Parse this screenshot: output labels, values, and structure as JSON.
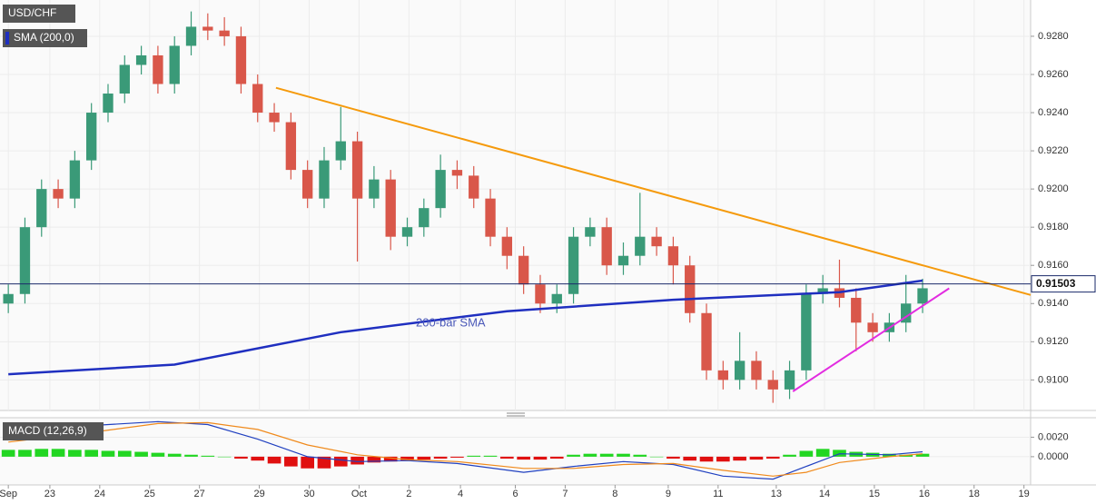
{
  "chart_data": [
    {
      "type": "candlestick",
      "title": "USD/CHF",
      "x": [
        0,
        1,
        2,
        3,
        4,
        5,
        6,
        7,
        8,
        9,
        10,
        11,
        12,
        13,
        14,
        15,
        16,
        17,
        18,
        19,
        20,
        21,
        22,
        23,
        24,
        25,
        26,
        27,
        28,
        29,
        30,
        31,
        32,
        33,
        34,
        35,
        36,
        37,
        38,
        39,
        40,
        41,
        42,
        43,
        44,
        45,
        46,
        47,
        48,
        49,
        50,
        51,
        52,
        53,
        54,
        55
      ],
      "open": [
        0.914,
        0.9145,
        0.918,
        0.92,
        0.9195,
        0.9215,
        0.924,
        0.925,
        0.9265,
        0.927,
        0.9255,
        0.9275,
        0.9285,
        0.9283,
        0.928,
        0.9255,
        0.924,
        0.9235,
        0.921,
        0.9195,
        0.9215,
        0.9225,
        0.9195,
        0.9205,
        0.9175,
        0.918,
        0.919,
        0.921,
        0.9207,
        0.9195,
        0.9175,
        0.9165,
        0.915,
        0.914,
        0.9145,
        0.9175,
        0.918,
        0.916,
        0.9165,
        0.9175,
        0.917,
        0.916,
        0.9135,
        0.9105,
        0.91,
        0.911,
        0.91,
        0.9095,
        0.9105,
        0.9145,
        0.9148,
        0.9143,
        0.913,
        0.9125,
        0.913,
        0.914
      ],
      "high": [
        0.915,
        0.9185,
        0.9205,
        0.9205,
        0.922,
        0.9245,
        0.9255,
        0.927,
        0.9275,
        0.9275,
        0.928,
        0.9293,
        0.9292,
        0.929,
        0.9285,
        0.926,
        0.9245,
        0.924,
        0.9215,
        0.9222,
        0.9243,
        0.923,
        0.9212,
        0.921,
        0.9185,
        0.9195,
        0.9218,
        0.9215,
        0.9212,
        0.92,
        0.918,
        0.917,
        0.9155,
        0.915,
        0.918,
        0.9185,
        0.9185,
        0.9172,
        0.9198,
        0.918,
        0.9175,
        0.9165,
        0.914,
        0.911,
        0.9125,
        0.9115,
        0.9105,
        0.911,
        0.915,
        0.9155,
        0.9163,
        0.9148,
        0.9135,
        0.9135,
        0.9155,
        0.9153
      ],
      "low": [
        0.9135,
        0.914,
        0.9175,
        0.919,
        0.919,
        0.921,
        0.9235,
        0.9245,
        0.926,
        0.925,
        0.925,
        0.927,
        0.9278,
        0.9275,
        0.925,
        0.9235,
        0.923,
        0.9205,
        0.919,
        0.919,
        0.921,
        0.9162,
        0.919,
        0.9168,
        0.917,
        0.9175,
        0.9185,
        0.92,
        0.919,
        0.917,
        0.9158,
        0.9145,
        0.9135,
        0.9135,
        0.914,
        0.917,
        0.9155,
        0.9155,
        0.916,
        0.9165,
        0.915,
        0.913,
        0.91,
        0.9095,
        0.9095,
        0.9095,
        0.9088,
        0.909,
        0.91,
        0.914,
        0.9138,
        0.9115,
        0.912,
        0.912,
        0.9125,
        0.9135
      ],
      "close": [
        0.9145,
        0.918,
        0.92,
        0.9195,
        0.9215,
        0.924,
        0.925,
        0.9265,
        0.927,
        0.9255,
        0.9275,
        0.9285,
        0.9283,
        0.928,
        0.9255,
        0.924,
        0.9235,
        0.921,
        0.9195,
        0.9215,
        0.9225,
        0.9195,
        0.9205,
        0.9175,
        0.918,
        0.919,
        0.921,
        0.9207,
        0.9195,
        0.9175,
        0.9165,
        0.915,
        0.914,
        0.9145,
        0.9175,
        0.918,
        0.916,
        0.9165,
        0.9175,
        0.917,
        0.916,
        0.9135,
        0.9105,
        0.91,
        0.911,
        0.91,
        0.9095,
        0.9105,
        0.9145,
        0.9148,
        0.9143,
        0.913,
        0.9125,
        0.913,
        0.914,
        0.9148
      ],
      "up_color": "#3a9a78",
      "down_color": "#d9574a",
      "xlim": [
        -0.5,
        61.5
      ],
      "xticks": [
        {
          "value": 0,
          "label": "Sep"
        },
        {
          "value": 2.5,
          "label": "23"
        },
        {
          "value": 5.5,
          "label": "24"
        },
        {
          "value": 8.5,
          "label": "25"
        },
        {
          "value": 11.5,
          "label": "27"
        },
        {
          "value": 15.1,
          "label": "29"
        },
        {
          "value": 18.1,
          "label": "30"
        },
        {
          "value": 21.1,
          "label": "Oct"
        },
        {
          "value": 24.1,
          "label": "2"
        },
        {
          "value": 27.2,
          "label": "4"
        },
        {
          "value": 30.5,
          "label": "6"
        },
        {
          "value": 33.5,
          "label": "7"
        },
        {
          "value": 36.5,
          "label": "8"
        },
        {
          "value": 39.7,
          "label": "9"
        },
        {
          "value": 42.7,
          "label": "11"
        },
        {
          "value": 46.2,
          "label": "13"
        },
        {
          "value": 49.1,
          "label": "14"
        },
        {
          "value": 52.1,
          "label": "15"
        },
        {
          "value": 55.1,
          "label": "16"
        },
        {
          "value": 58.1,
          "label": "18"
        },
        {
          "value": 61.1,
          "label": "19"
        }
      ],
      "ylim": [
        0.9084,
        0.9299
      ],
      "yticks": [
        {
          "value": 0.91,
          "label": "0.9100"
        },
        {
          "value": 0.912,
          "label": "0.9120"
        },
        {
          "value": 0.914,
          "label": "0.9140"
        },
        {
          "value": 0.916,
          "label": "0.9160"
        },
        {
          "value": 0.918,
          "label": "0.9180"
        },
        {
          "value": 0.92,
          "label": "0.9200"
        },
        {
          "value": 0.922,
          "label": "0.9220"
        },
        {
          "value": 0.924,
          "label": "0.9240"
        },
        {
          "value": 0.926,
          "label": "0.9260"
        },
        {
          "value": 0.928,
          "label": "0.9280"
        }
      ],
      "grid": true,
      "last_price": 0.91503,
      "series": [
        {
          "name": "SMA (200,0)",
          "color": "#1f2fc0",
          "x": [
            0,
            10,
            20,
            30,
            40,
            45,
            50,
            55
          ],
          "values": [
            0.9103,
            0.9108,
            0.9125,
            0.9136,
            0.9142,
            0.9144,
            0.9146,
            0.9152
          ]
        }
      ],
      "trendlines": [
        {
          "color": "#f59a0c",
          "x": [
            16.1,
            61.5
          ],
          "values": [
            0.9253,
            0.91445
          ]
        },
        {
          "color": "#e22ce0",
          "x": [
            47.2,
            56.6
          ],
          "values": [
            0.9094,
            0.9148
          ]
        }
      ],
      "annotation": "200-bar SMA"
    },
    {
      "type": "macd",
      "title": "MACD (12,26,9)",
      "histogram": [
        0.0007,
        0.0007,
        0.0008,
        0.0008,
        0.0007,
        0.0007,
        0.0006,
        0.0006,
        0.0005,
        0.0004,
        0.0003,
        0.0002,
        0.0001,
        0.0,
        -0.0002,
        -0.0004,
        -0.0007,
        -0.001,
        -0.0012,
        -0.0012,
        -0.001,
        -0.0008,
        -0.0006,
        -0.0005,
        -0.0004,
        -0.0003,
        -0.0002,
        -0.0001,
        0.0001,
        0.0001,
        -0.0002,
        -0.0003,
        -0.0003,
        -0.0002,
        0.0002,
        0.0003,
        0.0003,
        0.0003,
        0.0002,
        0.0,
        -0.0002,
        -0.0004,
        -0.0005,
        -0.0005,
        -0.0004,
        -0.0003,
        -0.0002,
        0.0002,
        0.0006,
        0.0008,
        0.0007,
        0.0005,
        0.0004,
        0.0003,
        0.0002,
        0.0003
      ],
      "positive_color": "#22d622",
      "negative_color": "#e01010",
      "ylim": [
        -0.0029,
        0.004
      ],
      "yticks": [
        {
          "value": 0.0,
          "label": "0.0000"
        },
        {
          "value": 0.002,
          "label": "0.0020"
        }
      ],
      "series": [
        {
          "color": "#2040c0",
          "x": [
            0,
            5,
            9,
            12,
            15,
            18,
            21,
            24,
            27,
            31,
            34,
            37,
            40,
            43,
            46,
            48,
            50,
            53,
            55
          ],
          "values": [
            0.0022,
            0.0032,
            0.0036,
            0.0033,
            0.0018,
            0.0,
            -0.0005,
            -0.0004,
            -0.0007,
            -0.0016,
            -0.001,
            -0.0005,
            -0.0008,
            -0.002,
            -0.0023,
            -0.001,
            0.0003,
            0.0002,
            0.0005
          ]
        },
        {
          "color": "#f08a1c",
          "x": [
            0,
            5,
            9,
            12,
            15,
            18,
            21,
            24,
            27,
            31,
            34,
            37,
            40,
            43,
            46,
            48,
            50,
            53,
            55
          ],
          "values": [
            0.0015,
            0.0025,
            0.0034,
            0.0035,
            0.0028,
            0.0012,
            0.0002,
            -0.0003,
            -0.0005,
            -0.0012,
            -0.0012,
            -0.0008,
            -0.0007,
            -0.0014,
            -0.002,
            -0.0016,
            -0.0006,
            0.0,
            0.0003
          ]
        }
      ]
    }
  ]
}
